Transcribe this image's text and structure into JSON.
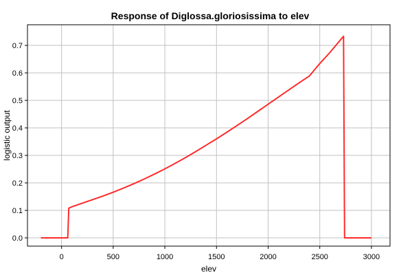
{
  "chart_data": {
    "type": "line",
    "title": "Response of Diglossa.gloriosissima to elev",
    "xlabel": "elev",
    "ylabel": "logistic output",
    "xlim": [
      -330,
      3180
    ],
    "ylim": [
      -0.03,
      0.775
    ],
    "xticks": [
      0,
      500,
      1000,
      1500,
      2000,
      2500,
      3000
    ],
    "yticks": [
      0.0,
      0.1,
      0.2,
      0.3,
      0.4,
      0.5,
      0.6,
      0.7
    ],
    "grid": true,
    "series": [
      {
        "color": "#ff2a2a",
        "x": [
          -200,
          60,
          70,
          100,
          200,
          300,
          400,
          500,
          600,
          700,
          800,
          900,
          1000,
          1100,
          1200,
          1300,
          1400,
          1500,
          1600,
          1700,
          1800,
          1900,
          2000,
          2100,
          2200,
          2300,
          2400,
          2500,
          2600,
          2700,
          2730,
          2740,
          2800,
          3000
        ],
        "y": [
          0.0,
          0.0,
          0.108,
          0.113,
          0.126,
          0.139,
          0.152,
          0.166,
          0.181,
          0.197,
          0.214,
          0.232,
          0.251,
          0.271,
          0.292,
          0.314,
          0.337,
          0.36,
          0.384,
          0.409,
          0.434,
          0.46,
          0.486,
          0.512,
          0.538,
          0.564,
          0.589,
          0.634,
          0.675,
          0.72,
          0.733,
          0.0,
          0.0,
          0.0
        ]
      }
    ]
  }
}
